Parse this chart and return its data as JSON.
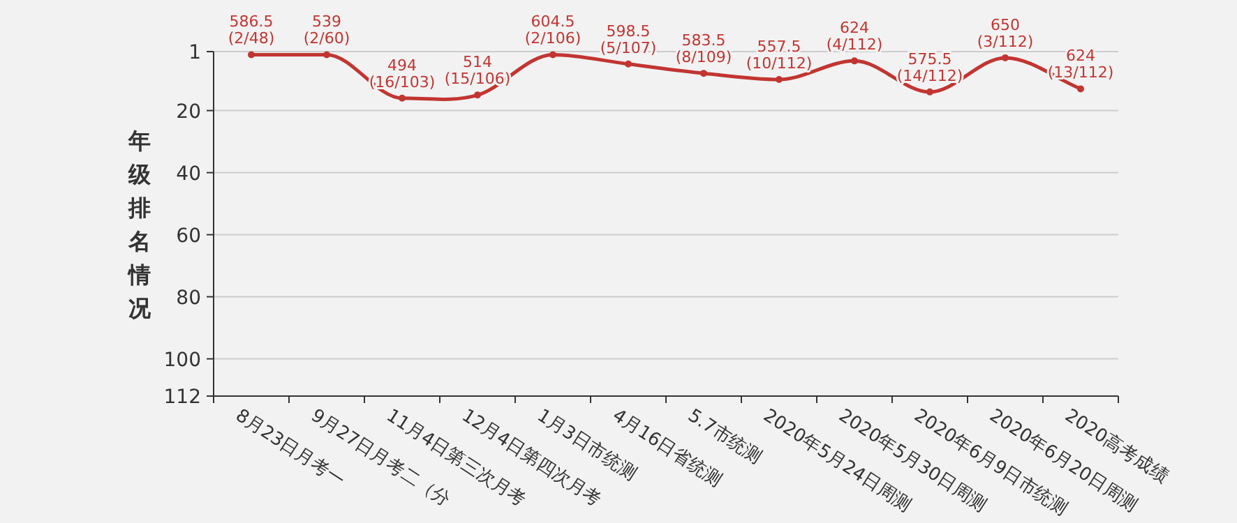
{
  "chart_data": {
    "type": "line",
    "ylabel": "年级排名情况",
    "categories": [
      "8月23日月考一",
      "9月27日月考二（分",
      "11月4日第三次月考",
      "12月4日第四次月考",
      "1月3日市统测",
      "4月16日省统测",
      "5.7市统测",
      "2020年5月24日周测",
      "2020年5月30日周测",
      "2020年6月9日市统测",
      "2020年6月20日周测",
      "2020高考成绩"
    ],
    "series": [
      {
        "color": "#c23531",
        "values": [
          2,
          2,
          16,
          15,
          2,
          5,
          8,
          10,
          4,
          14,
          3,
          13
        ],
        "value_labels": [
          "586.5\n(2/48)",
          "539\n(2/60)",
          "494\n(16/103)",
          "514\n(15/106)",
          "604.5\n(2/106)",
          "598.5\n(5/107)",
          "583.5\n(8/109)",
          "557.5\n(10/112)",
          "624\n(4/112)",
          "575.5\n(14/112)",
          "650\n(3/112)",
          "624\n(13/112)"
        ]
      }
    ],
    "ylim": [
      112,
      1
    ],
    "yticks": [
      1,
      20,
      40,
      60,
      80,
      100,
      112
    ],
    "grid": "y",
    "marker": "circle",
    "line_style": "solid"
  }
}
